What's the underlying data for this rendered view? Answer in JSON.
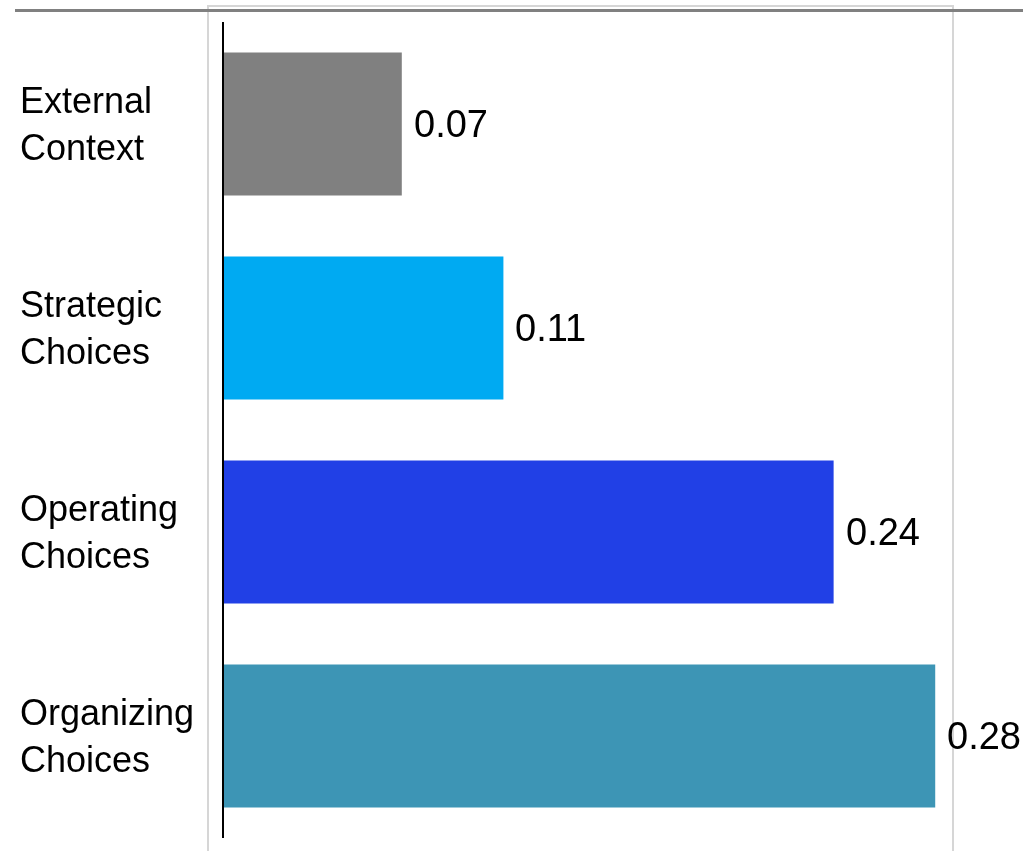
{
  "chart_data": {
    "type": "bar",
    "orientation": "horizontal",
    "categories": [
      "External Context",
      "Strategic Choices",
      "Operating Choices",
      "Organizing Choices"
    ],
    "values": [
      0.07,
      0.11,
      0.24,
      0.28
    ],
    "colors": [
      "#808080",
      "#00aaf2",
      "#2140e6",
      "#3d95b5"
    ],
    "xlim": [
      0,
      0.287
    ],
    "data_labels": true,
    "tick_labels": "y"
  }
}
